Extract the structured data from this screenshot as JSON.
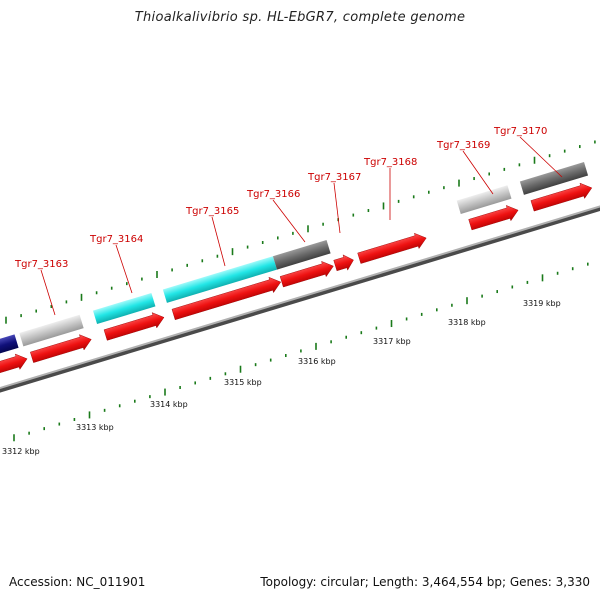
{
  "title": "Thioalkalivibrio sp. HL-EbGR7, complete genome",
  "accession": "Accession: NC_011901",
  "summary": "Topology: circular; Length: 3,464,554 bp; Genes: 3,330",
  "colors": {
    "backbone": "#8a8a8a",
    "cds": "#ee1111",
    "label": "#cc0000",
    "tick": "#1a7a1a",
    "navy": "#10107a",
    "cyan": "#22e6e6",
    "light_gray": "#c4c4c4",
    "dark_gray": "#6a6a6a"
  },
  "gene_labels": [
    {
      "text": "Tgr7_3163"
    },
    {
      "text": "Tgr7_3164"
    },
    {
      "text": "Tgr7_3165"
    },
    {
      "text": "Tgr7_3166"
    },
    {
      "text": "Tgr7_3167"
    },
    {
      "text": "Tgr7_3168"
    },
    {
      "text": "Tgr7_3169"
    },
    {
      "text": "Tgr7_3170"
    }
  ],
  "kbp_labels": [
    "3312 kbp",
    "3313 kbp",
    "3314 kbp",
    "3315 kbp",
    "3316 kbp",
    "3317 kbp",
    "3318 kbp",
    "3319 kbp"
  ]
}
